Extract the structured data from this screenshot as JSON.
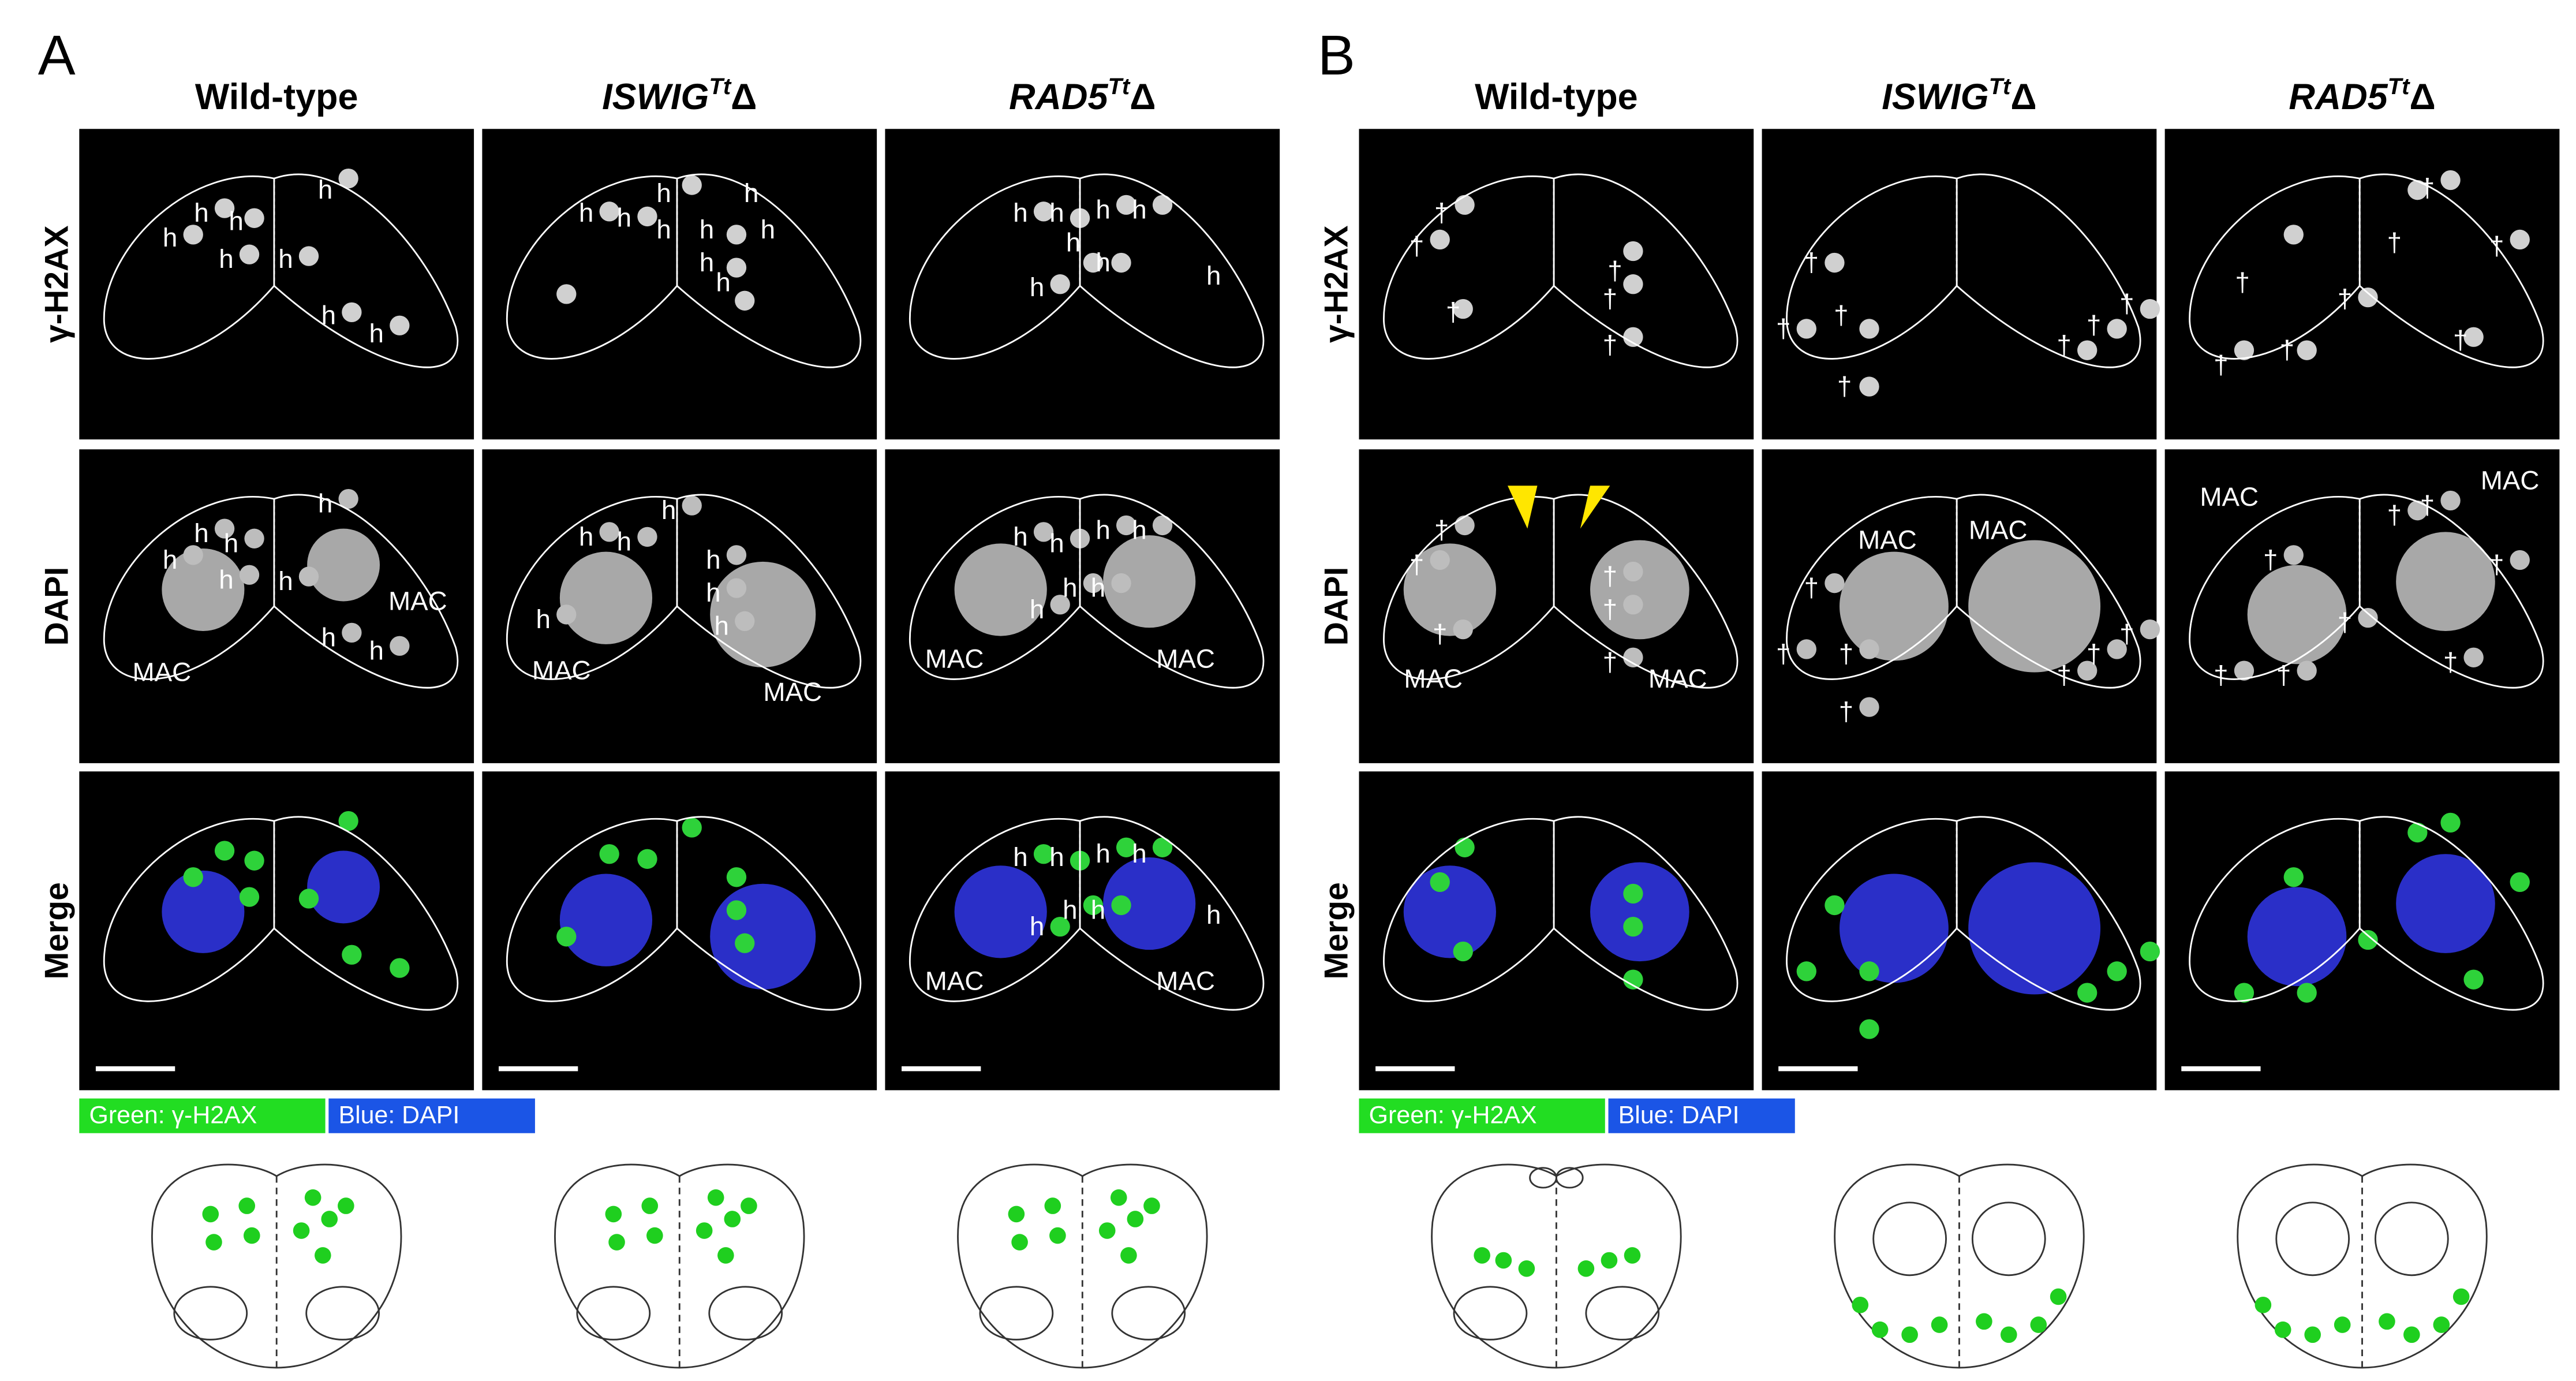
{
  "panels": [
    {
      "letter": "A",
      "columns": [
        {
          "text": "Wild-type"
        },
        {
          "gene": "ISWIG",
          "sup": "Tt",
          "suffix": "Δ"
        },
        {
          "gene": "RAD5",
          "sup": "Tt",
          "suffix": "Δ"
        }
      ],
      "rows": [
        "γ-H2AX",
        "DAPI",
        "Merge"
      ],
      "legend": [
        "Green:  γ-H2AX",
        "Blue:  DAPI"
      ],
      "annotations": [
        [
          [
            "h",
            "h",
            "h",
            "h",
            "h",
            "h",
            "h",
            "h"
          ],
          [
            "h",
            "h",
            "h",
            "h",
            "h",
            "h",
            "h",
            "h",
            "h"
          ],
          [
            "h",
            "h",
            "h",
            "h",
            "h",
            "h",
            "h",
            "h"
          ]
        ],
        [
          [
            "h",
            "h",
            "h",
            "h",
            "h",
            "h",
            "h",
            "h",
            "MAC",
            "MAC"
          ],
          [
            "h",
            "h",
            "h",
            "h",
            "h",
            "h",
            "h",
            "MAC",
            "MAC"
          ],
          [
            "h",
            "h",
            "h",
            "h",
            "h",
            "h",
            "h",
            "MAC",
            "MAC"
          ]
        ],
        [
          [],
          [],
          [
            "h",
            "h",
            "h",
            "h",
            "h",
            "h",
            "h",
            "h",
            "MAC",
            "MAC"
          ]
        ]
      ]
    },
    {
      "letter": "B",
      "columns": [
        {
          "text": "Wild-type"
        },
        {
          "gene": "ISWIG",
          "sup": "Tt",
          "suffix": "Δ"
        },
        {
          "gene": "RAD5",
          "sup": "Tt",
          "suffix": "Δ"
        }
      ],
      "rows": [
        "γ-H2AX",
        "DAPI",
        "Merge"
      ],
      "legend": [
        "Green:  γ-H2AX",
        "Blue:  DAPI"
      ],
      "annotations": [
        [
          [
            "†",
            "†",
            "†",
            "†",
            "†",
            "†"
          ],
          [
            "†",
            "†",
            "†",
            "†",
            "†",
            "†",
            "†"
          ],
          [
            "†",
            "†",
            "†",
            "†",
            "†",
            "†",
            "†",
            "†"
          ]
        ],
        [
          [
            "†",
            "†",
            "†",
            "†",
            "†",
            "†",
            "MAC",
            "MAC"
          ],
          [
            "†",
            "†",
            "†",
            "†",
            "†",
            "†",
            "†",
            "MAC",
            "MAC"
          ],
          [
            "†",
            "†",
            "†",
            "†",
            "†",
            "†",
            "†",
            "†",
            "MAC",
            "MAC"
          ]
        ],
        [
          [],
          [],
          []
        ]
      ]
    }
  ]
}
